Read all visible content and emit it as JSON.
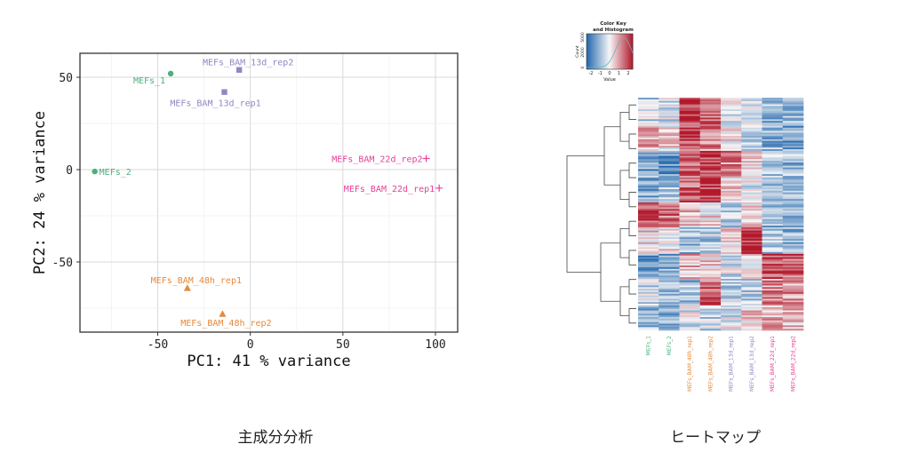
{
  "captions": {
    "left": "主成分分析",
    "right": "ヒートマップ"
  },
  "colors": {
    "MEFs": "#4daf7c",
    "BAM_13d": "#8e88c4",
    "BAM_22d": "#e7409a",
    "BAM_48h": "#e6893b",
    "heat_low": "#2166ac",
    "heat_mid": "#f7f7f7",
    "heat_high": "#b2182b"
  },
  "chart_data": [
    {
      "type": "scatter",
      "title": "",
      "xlabel": "PC1:  41 % variance",
      "ylabel": "PC2:  24 % variance",
      "xlim": [
        -92,
        112
      ],
      "ylim": [
        -88,
        63
      ],
      "xticks": [
        -50,
        0,
        50,
        100
      ],
      "yticks": [
        -50,
        0,
        50
      ],
      "grid": true,
      "legend": "none",
      "points": [
        {
          "label": "MEFs_1",
          "x": -43,
          "y": 52,
          "group": "MEFs",
          "shape": "circle"
        },
        {
          "label": "MEFs_2",
          "x": -84,
          "y": -1,
          "group": "MEFs",
          "shape": "circle"
        },
        {
          "label": "MEFs_BAM_13d_rep2",
          "x": -6,
          "y": 54,
          "group": "BAM_13d",
          "shape": "square"
        },
        {
          "label": "MEFs_BAM_13d_rep1",
          "x": -14,
          "y": 42,
          "group": "BAM_13d",
          "shape": "square"
        },
        {
          "label": "MEFs_BAM_22d_rep2",
          "x": 95,
          "y": 6,
          "group": "BAM_22d",
          "shape": "cross"
        },
        {
          "label": "MEFs_BAM_22d_rep1",
          "x": 102,
          "y": -10,
          "group": "BAM_22d",
          "shape": "cross"
        },
        {
          "label": "MEFs_BAM_48h_rep1",
          "x": -34,
          "y": -64,
          "group": "BAM_48h",
          "shape": "triangle"
        },
        {
          "label": "MEFs_BAM_48h_rep2",
          "x": -15,
          "y": -78,
          "group": "BAM_48h",
          "shape": "triangle"
        }
      ]
    },
    {
      "type": "heatmap",
      "title": "",
      "color_key": {
        "title_line1": "Color Key",
        "title_line2": "and Histogram",
        "xlabel": "Value",
        "ylabel": "Count",
        "xticks": [
          "-2",
          "-1",
          "0",
          "1",
          "2"
        ],
        "yticks": [
          "0",
          "2000",
          "5000"
        ]
      },
      "columns": [
        {
          "label": "MEFs_1",
          "group": "MEFs"
        },
        {
          "label": "MEFs_2",
          "group": "MEFs"
        },
        {
          "label": "MEFs_BAM_48h_rep1",
          "group": "BAM_48h"
        },
        {
          "label": "MEFs_BAM_48h_rep2",
          "group": "BAM_48h"
        },
        {
          "label": "MEFs_BAM_13d_rep1",
          "group": "BAM_13d"
        },
        {
          "label": "MEFs_BAM_13d_rep2",
          "group": "BAM_13d"
        },
        {
          "label": "MEFs_BAM_22d_rep1",
          "group": "BAM_22d"
        },
        {
          "label": "MEFs_BAM_22d_rep2",
          "group": "BAM_22d"
        }
      ],
      "value_range": [
        -2,
        2
      ],
      "row_blocks": [
        {
          "values": [
            -0.5,
            -0.3,
            1.8,
            1.2,
            -0.2,
            -0.4,
            -0.8,
            -0.9
          ]
        },
        {
          "values": [
            0.6,
            0.2,
            1.6,
            1.0,
            0.1,
            -0.3,
            -1.0,
            -1.1
          ]
        },
        {
          "values": [
            -1.2,
            -1.3,
            1.2,
            1.6,
            1.0,
            0.3,
            -0.7,
            -0.8
          ]
        },
        {
          "values": [
            -1.0,
            -0.6,
            1.4,
            1.8,
            0.2,
            -0.2,
            -0.9,
            -0.9
          ]
        },
        {
          "values": [
            1.6,
            1.2,
            0.4,
            0.2,
            -0.5,
            0.3,
            -1.0,
            -1.0
          ]
        },
        {
          "values": [
            0.3,
            0.1,
            -0.8,
            -0.6,
            0.2,
            1.9,
            -0.7,
            -0.8
          ]
        },
        {
          "values": [
            -1.2,
            -1.0,
            0.6,
            0.3,
            -0.3,
            0.2,
            1.6,
            1.4
          ]
        },
        {
          "values": [
            -0.4,
            -0.6,
            -0.8,
            1.4,
            -0.4,
            -0.5,
            1.0,
            0.9
          ]
        },
        {
          "values": [
            -0.8,
            -0.9,
            -0.2,
            -0.4,
            -0.2,
            0.3,
            0.6,
            0.4
          ]
        }
      ]
    }
  ]
}
